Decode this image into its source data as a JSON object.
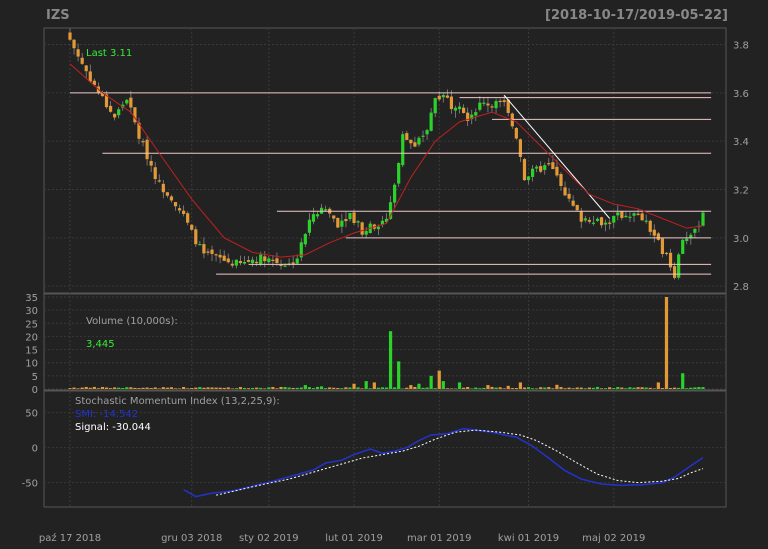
{
  "header": {
    "ticker": "IZS",
    "date_range": "[2018-10-17/2019-05-22]"
  },
  "colors": {
    "background": "#222222",
    "grid": "#3a3a3a",
    "axis_text": "#a0a0a0",
    "up": "#2ad22a",
    "down": "#e39a36",
    "ma": "#c02020",
    "hline": "#f0c8c8",
    "trend": "#ffffff",
    "last": "#33ee33",
    "smi": "#2233cc",
    "signal": "#ffffff"
  },
  "price_panel": {
    "last_label": "Last 3.11",
    "y_ticks": [
      "3.8",
      "3.6",
      "3.4",
      "3.2",
      "3.0",
      "2.8"
    ]
  },
  "volume_panel": {
    "label": "Volume (10,000s):",
    "value": "3,445",
    "y_ticks": [
      "35",
      "30",
      "25",
      "20",
      "15",
      "10",
      "5",
      "0"
    ]
  },
  "smi_panel": {
    "label": "Stochastic Momentum Index (13,2,25,9):",
    "smi_label": "SMI: -14.542",
    "signal_label": "Signal: -30.044",
    "y_ticks": [
      "50",
      "0",
      "-50"
    ]
  },
  "x_axis": {
    "labels": [
      "paź 17 2018",
      "gru 03 2018",
      "sty 02 2019",
      "lut 01 2019",
      "mar 01 2019",
      "kwi 01 2019",
      "maj 02 2019"
    ]
  },
  "chart_data": {
    "type": "candlestick",
    "price": {
      "ylim": [
        2.78,
        3.86
      ],
      "anchors_close": [
        [
          0,
          3.82
        ],
        [
          3,
          3.72
        ],
        [
          6,
          3.63
        ],
        [
          9,
          3.55
        ],
        [
          11,
          3.5
        ],
        [
          14,
          3.58
        ],
        [
          17,
          3.42
        ],
        [
          20,
          3.3
        ],
        [
          22,
          3.22
        ],
        [
          25,
          3.17
        ],
        [
          28,
          3.09
        ],
        [
          30,
          3.02
        ],
        [
          33,
          2.93
        ],
        [
          36,
          2.92
        ],
        [
          39,
          2.9
        ],
        [
          42,
          2.89
        ],
        [
          45,
          2.91
        ],
        [
          48,
          2.92
        ],
        [
          51,
          2.9
        ],
        [
          54,
          2.89
        ],
        [
          56,
          2.92
        ],
        [
          58,
          3.02
        ],
        [
          60,
          3.1
        ],
        [
          63,
          3.12
        ],
        [
          66,
          3.06
        ],
        [
          69,
          3.1
        ],
        [
          72,
          3.03
        ],
        [
          75,
          3.05
        ],
        [
          78,
          3.08
        ],
        [
          80,
          3.22
        ],
        [
          82,
          3.42
        ],
        [
          85,
          3.38
        ],
        [
          88,
          3.45
        ],
        [
          90,
          3.58
        ],
        [
          92,
          3.6
        ],
        [
          94,
          3.55
        ],
        [
          96,
          3.56
        ],
        [
          98,
          3.5
        ],
        [
          101,
          3.55
        ],
        [
          104,
          3.56
        ],
        [
          107,
          3.55
        ],
        [
          110,
          3.42
        ],
        [
          112,
          3.25
        ],
        [
          115,
          3.28
        ],
        [
          118,
          3.3
        ],
        [
          121,
          3.23
        ],
        [
          123,
          3.15
        ],
        [
          126,
          3.08
        ],
        [
          129,
          3.08
        ],
        [
          132,
          3.06
        ],
        [
          135,
          3.09
        ],
        [
          138,
          3.1
        ],
        [
          141,
          3.08
        ],
        [
          144,
          3.01
        ],
        [
          147,
          2.92
        ],
        [
          149,
          2.85
        ],
        [
          151,
          3.0
        ],
        [
          154,
          3.02
        ],
        [
          156,
          3.11
        ]
      ],
      "moving_average": [
        [
          0,
          3.72
        ],
        [
          8,
          3.6
        ],
        [
          15,
          3.52
        ],
        [
          22,
          3.35
        ],
        [
          30,
          3.16
        ],
        [
          38,
          3.0
        ],
        [
          45,
          2.94
        ],
        [
          52,
          2.92
        ],
        [
          58,
          2.93
        ],
        [
          64,
          2.98
        ],
        [
          70,
          3.02
        ],
        [
          78,
          3.06
        ],
        [
          84,
          3.25
        ],
        [
          90,
          3.4
        ],
        [
          96,
          3.48
        ],
        [
          104,
          3.52
        ],
        [
          110,
          3.48
        ],
        [
          116,
          3.38
        ],
        [
          122,
          3.28
        ],
        [
          128,
          3.18
        ],
        [
          134,
          3.14
        ],
        [
          140,
          3.12
        ],
        [
          146,
          3.08
        ],
        [
          152,
          3.04
        ],
        [
          156,
          3.05
        ]
      ],
      "hlines": [
        {
          "y": 3.6,
          "x0": 0,
          "x1": 158
        },
        {
          "y": 3.58,
          "x0": 96,
          "x1": 158
        },
        {
          "y": 3.49,
          "x0": 104,
          "x1": 158
        },
        {
          "y": 3.35,
          "x0": 8,
          "x1": 158
        },
        {
          "y": 3.11,
          "x0": 51,
          "x1": 158
        },
        {
          "y": 3.0,
          "x0": 68,
          "x1": 158
        },
        {
          "y": 2.89,
          "x0": 44,
          "x1": 158
        },
        {
          "y": 2.85,
          "x0": 36,
          "x1": 158
        }
      ],
      "trendline": {
        "x0": 107,
        "y0": 3.59,
        "x1": 133,
        "y1": 3.08
      }
    },
    "volume": {
      "ylim": [
        0,
        35
      ],
      "spikes": [
        [
          58,
          1.5
        ],
        [
          62,
          1.0
        ],
        [
          70,
          2.0
        ],
        [
          73,
          3.0
        ],
        [
          75,
          2.5
        ],
        [
          79,
          22.0
        ],
        [
          81,
          10.5
        ],
        [
          84,
          1.5
        ],
        [
          86,
          2.0
        ],
        [
          89,
          5.0
        ],
        [
          91,
          7.0
        ],
        [
          92,
          3.0
        ],
        [
          96,
          2.5
        ],
        [
          103,
          1.5
        ],
        [
          108,
          1.2
        ],
        [
          111,
          2.5
        ],
        [
          120,
          1.6
        ],
        [
          145,
          2.5
        ],
        [
          147,
          35.0
        ],
        [
          151,
          6.0
        ]
      ]
    },
    "smi": {
      "ylim": [
        -82,
        78
      ],
      "smi": [
        [
          28,
          -60
        ],
        [
          31,
          -70
        ],
        [
          35,
          -65
        ],
        [
          40,
          -62
        ],
        [
          45,
          -55
        ],
        [
          50,
          -48
        ],
        [
          55,
          -40
        ],
        [
          60,
          -32
        ],
        [
          63,
          -22
        ],
        [
          67,
          -18
        ],
        [
          70,
          -10
        ],
        [
          74,
          -2
        ],
        [
          77,
          -8
        ],
        [
          80,
          -5
        ],
        [
          83,
          0
        ],
        [
          86,
          10
        ],
        [
          89,
          18
        ],
        [
          93,
          20
        ],
        [
          97,
          27
        ],
        [
          100,
          25
        ],
        [
          104,
          22
        ],
        [
          107,
          18
        ],
        [
          110,
          15
        ],
        [
          114,
          2
        ],
        [
          118,
          -15
        ],
        [
          122,
          -33
        ],
        [
          126,
          -45
        ],
        [
          131,
          -52
        ],
        [
          136,
          -54
        ],
        [
          141,
          -53
        ],
        [
          146,
          -50
        ],
        [
          149,
          -42
        ],
        [
          152,
          -30
        ],
        [
          155,
          -18
        ],
        [
          156,
          -14.5
        ]
      ],
      "signal": [
        [
          36,
          -68
        ],
        [
          42,
          -60
        ],
        [
          48,
          -52
        ],
        [
          54,
          -45
        ],
        [
          60,
          -35
        ],
        [
          66,
          -25
        ],
        [
          72,
          -15
        ],
        [
          77,
          -10
        ],
        [
          82,
          -5
        ],
        [
          86,
          2
        ],
        [
          90,
          12
        ],
        [
          95,
          22
        ],
        [
          100,
          25
        ],
        [
          106,
          22
        ],
        [
          111,
          18
        ],
        [
          115,
          10
        ],
        [
          120,
          -5
        ],
        [
          125,
          -22
        ],
        [
          130,
          -38
        ],
        [
          135,
          -47
        ],
        [
          140,
          -50
        ],
        [
          146,
          -48
        ],
        [
          150,
          -44
        ],
        [
          153,
          -36
        ],
        [
          156,
          -30
        ]
      ]
    }
  }
}
